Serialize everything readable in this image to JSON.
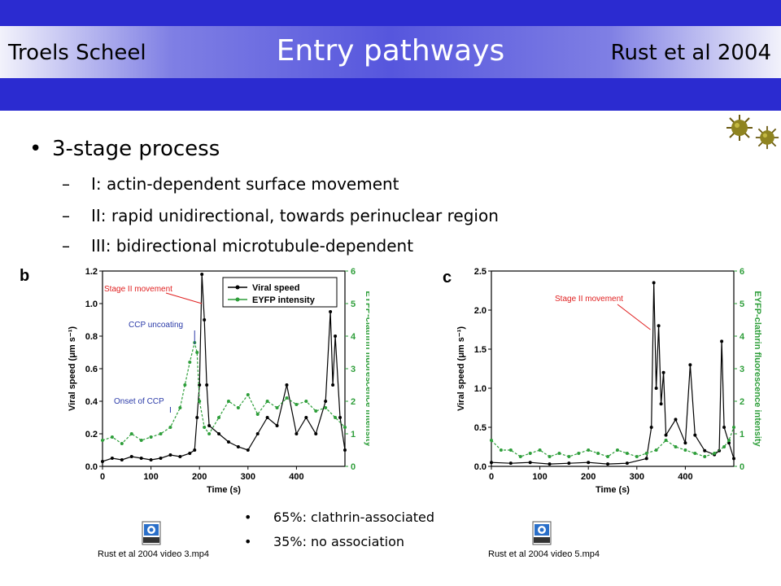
{
  "header": {
    "author": "Troels Scheel",
    "title": "Entry pathways",
    "reference": "Rust et al 2004"
  },
  "bullets": {
    "main": "3-stage process",
    "subs": [
      "I: actin-dependent surface movement",
      "II: rapid unidirectional, towards perinuclear region",
      "III: bidirectional microtubule-dependent"
    ]
  },
  "stats": [
    "65%: clathrin-associated",
    "35%: no association"
  ],
  "videos": [
    "Rust et al 2004 video 3.mp4",
    "Rust et al 2004 video 5.mp4"
  ],
  "chart_data": [
    {
      "panel": "b",
      "type": "line",
      "xlabel": "Time (s)",
      "ylabel": "Viral speed (μm s⁻¹)",
      "y2label": "EYFP-clathrin fluorescence intensity",
      "xlim": [
        0,
        500
      ],
      "xticks": [
        0,
        100,
        200,
        300,
        400
      ],
      "ylim": [
        0,
        1.2
      ],
      "yticks": [
        0.0,
        0.2,
        0.4,
        0.6,
        0.8,
        1.0,
        1.2
      ],
      "y2lim": [
        0,
        6
      ],
      "y2ticks": [
        0,
        1,
        2,
        3,
        4,
        5,
        6
      ],
      "legend": [
        "Viral speed",
        "EYFP intensity"
      ],
      "legend_position": "top-right",
      "annotations": [
        "Stage II movement",
        "CCP uncoating",
        "Onset of CCP"
      ],
      "series": [
        {
          "name": "Viral speed",
          "color": "#000000",
          "x": [
            0,
            20,
            40,
            60,
            80,
            100,
            120,
            140,
            160,
            180,
            190,
            195,
            200,
            205,
            210,
            215,
            220,
            240,
            260,
            280,
            300,
            320,
            340,
            360,
            380,
            400,
            420,
            440,
            460,
            470,
            475,
            480,
            490,
            500
          ],
          "values": [
            0.03,
            0.05,
            0.04,
            0.06,
            0.05,
            0.04,
            0.05,
            0.07,
            0.06,
            0.08,
            0.1,
            0.3,
            0.5,
            1.18,
            0.9,
            0.5,
            0.25,
            0.2,
            0.15,
            0.12,
            0.1,
            0.2,
            0.3,
            0.25,
            0.5,
            0.2,
            0.3,
            0.2,
            0.4,
            0.95,
            0.5,
            0.8,
            0.3,
            0.1
          ]
        },
        {
          "name": "EYFP intensity",
          "color": "#2e9e3a",
          "x": [
            0,
            20,
            40,
            60,
            80,
            100,
            120,
            140,
            160,
            170,
            180,
            190,
            195,
            200,
            210,
            220,
            240,
            260,
            280,
            300,
            320,
            340,
            360,
            380,
            400,
            420,
            440,
            460,
            480,
            500
          ],
          "values": [
            0.8,
            0.9,
            0.7,
            1.0,
            0.8,
            0.9,
            1.0,
            1.2,
            1.8,
            2.5,
            3.2,
            3.8,
            3.5,
            2.0,
            1.2,
            1.0,
            1.5,
            2.0,
            1.8,
            2.2,
            1.6,
            2.0,
            1.8,
            2.1,
            1.9,
            2.0,
            1.7,
            1.8,
            1.5,
            1.2
          ]
        }
      ]
    },
    {
      "panel": "c",
      "type": "line",
      "xlabel": "Time (s)",
      "ylabel": "Viral speed (μm s⁻¹)",
      "y2label": "EYFP-clathrin fluorescence intensity",
      "xlim": [
        0,
        500
      ],
      "xticks": [
        0,
        100,
        200,
        300,
        400
      ],
      "ylim": [
        0,
        2.5
      ],
      "yticks": [
        0.0,
        0.5,
        1.0,
        1.5,
        2.0,
        2.5
      ],
      "y2lim": [
        0,
        6
      ],
      "y2ticks": [
        0,
        1,
        2,
        3,
        4,
        5,
        6
      ],
      "annotations": [
        "Stage II movement"
      ],
      "series": [
        {
          "name": "Viral speed",
          "color": "#000000",
          "x": [
            0,
            40,
            80,
            120,
            160,
            200,
            240,
            280,
            320,
            330,
            335,
            340,
            345,
            350,
            355,
            360,
            380,
            400,
            410,
            420,
            440,
            460,
            470,
            475,
            480,
            490,
            500
          ],
          "values": [
            0.05,
            0.04,
            0.05,
            0.03,
            0.04,
            0.05,
            0.03,
            0.04,
            0.1,
            0.5,
            2.35,
            1.0,
            1.8,
            0.8,
            1.2,
            0.4,
            0.6,
            0.3,
            1.3,
            0.4,
            0.2,
            0.15,
            0.2,
            1.6,
            0.5,
            0.3,
            0.1
          ]
        },
        {
          "name": "EYFP intensity",
          "color": "#2e9e3a",
          "x": [
            0,
            20,
            40,
            60,
            80,
            100,
            120,
            140,
            160,
            180,
            200,
            220,
            240,
            260,
            280,
            300,
            320,
            340,
            360,
            380,
            400,
            420,
            440,
            460,
            480,
            490,
            500
          ],
          "values": [
            0.8,
            0.5,
            0.5,
            0.3,
            0.4,
            0.5,
            0.3,
            0.4,
            0.3,
            0.4,
            0.5,
            0.4,
            0.3,
            0.5,
            0.4,
            0.3,
            0.4,
            0.5,
            0.8,
            0.6,
            0.5,
            0.4,
            0.3,
            0.4,
            0.6,
            0.8,
            1.2
          ]
        }
      ]
    }
  ]
}
